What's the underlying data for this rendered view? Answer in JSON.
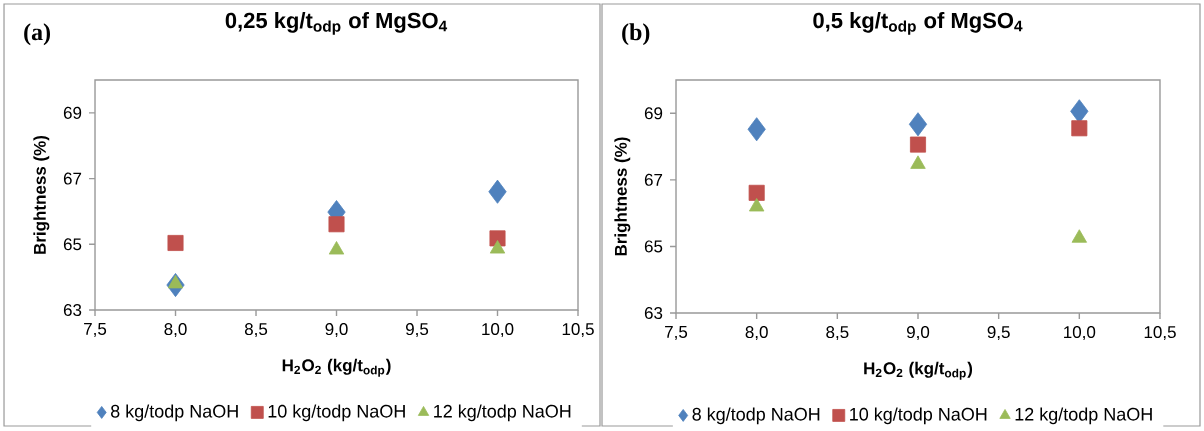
{
  "chart_data": [
    {
      "type": "scatter",
      "title": "0,25 kg/t$_{odp}$ of MgSO$_{4}$",
      "xlabel": "H$_{2}$O$_{2}$ (kg/t$_{odp}$)",
      "ylabel": "Brightness (%)",
      "annotations": [
        "(a)"
      ],
      "x": [
        8,
        9,
        10
      ],
      "xlim": [
        7.5,
        10.5
      ],
      "ylim": [
        63,
        70
      ],
      "xticks": [
        {
          "value": 7.5,
          "label": "7,5"
        },
        {
          "value": 8,
          "label": "8,0"
        },
        {
          "value": 8.5,
          "label": "8,5"
        },
        {
          "value": 9,
          "label": "9,0"
        },
        {
          "value": 9.5,
          "label": "9,5"
        },
        {
          "value": 10,
          "label": "10,0"
        },
        {
          "value": 10.5,
          "label": "10,5"
        }
      ],
      "yticks": [
        63,
        65,
        67,
        69
      ],
      "legend": "bottom",
      "grid": false,
      "series": [
        {
          "name": "8 kg/todp NaOH",
          "color": "#4f81bd",
          "marker": "diamond",
          "values": [
            63.76,
            65.98,
            66.6
          ]
        },
        {
          "name": "10 kg/todp NaOH",
          "color": "#c0504d",
          "marker": "square",
          "values": [
            65.04,
            65.61,
            65.18
          ]
        },
        {
          "name": "12 kg/todp NaOH",
          "color": "#9bbb59",
          "marker": "triangle",
          "values": [
            63.8,
            64.83,
            64.86
          ]
        }
      ]
    },
    {
      "type": "scatter",
      "title": "0,5 kg/t$_{odp}$ of MgSO$_{4}$",
      "xlabel": "H$_{2}$O$_{2}$ (kg/t$_{odp}$)",
      "ylabel": "Brightness (%)",
      "annotations": [
        "(b)"
      ],
      "x": [
        8,
        9,
        10
      ],
      "xlim": [
        7.5,
        10.5
      ],
      "ylim": [
        63,
        70
      ],
      "xticks": [
        {
          "value": 7.5,
          "label": "7,5"
        },
        {
          "value": 8,
          "label": "8,0"
        },
        {
          "value": 8.5,
          "label": "8,5"
        },
        {
          "value": 9,
          "label": "9,0"
        },
        {
          "value": 9.5,
          "label": "9,5"
        },
        {
          "value": 10,
          "label": "10,0"
        },
        {
          "value": 10.5,
          "label": "10,5"
        }
      ],
      "yticks": [
        63,
        65,
        67,
        69
      ],
      "legend": "bottom",
      "grid": false,
      "series": [
        {
          "name": "8 kg/todp NaOH",
          "color": "#4f81bd",
          "marker": "diamond",
          "values": [
            68.52,
            68.67,
            69.06
          ]
        },
        {
          "name": "10 kg/todp NaOH",
          "color": "#c0504d",
          "marker": "square",
          "values": [
            66.61,
            68.06,
            68.55
          ]
        },
        {
          "name": "12 kg/todp NaOH",
          "color": "#9bbb59",
          "marker": "triangle",
          "values": [
            66.19,
            67.47,
            65.25
          ]
        }
      ]
    }
  ]
}
